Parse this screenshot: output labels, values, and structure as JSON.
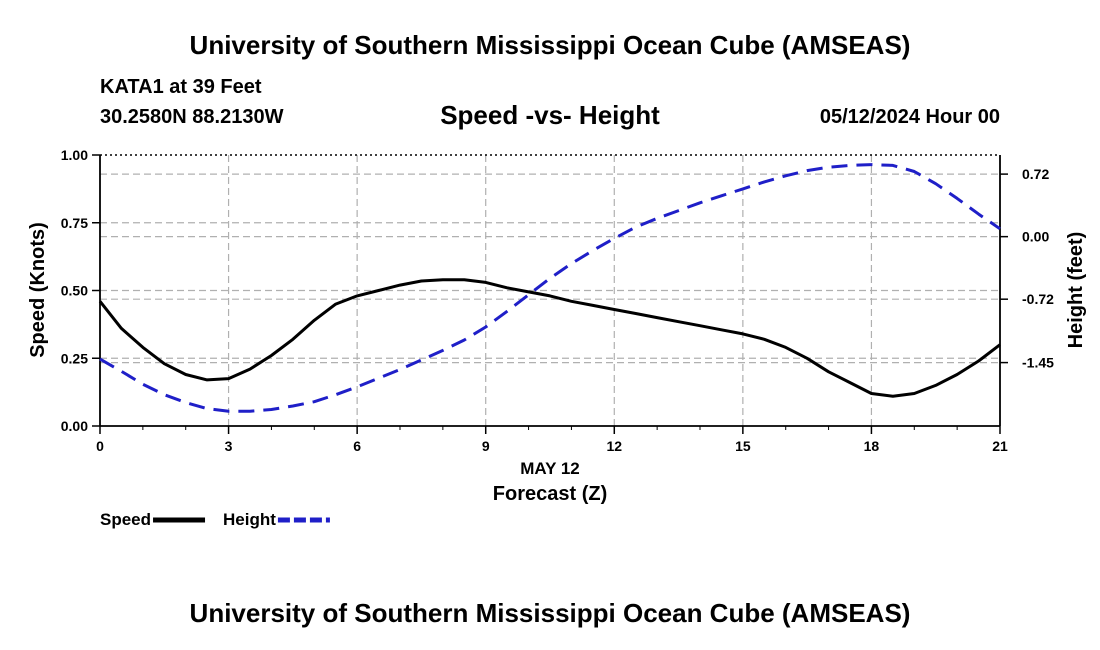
{
  "header": {
    "title": "University of Southern Mississippi Ocean Cube (AMSEAS)",
    "station": "KATA1 at 39 Feet",
    "coords": "30.2580N  88.2130W",
    "subtitle": "Speed -vs- Height",
    "datetime": "05/12/2024 Hour 00"
  },
  "footer": {
    "title": "University of Southern Mississippi Ocean Cube (AMSEAS)"
  },
  "chart_data": {
    "type": "line",
    "title": "Speed -vs- Height",
    "xlabel_top": "MAY 12",
    "xlabel": "Forecast (Z)",
    "ylabel": "Speed (Knots)",
    "y2label": "Height (feet)",
    "xlim": [
      0,
      21
    ],
    "ylim": [
      0,
      1
    ],
    "y2lim": [
      -2.18,
      0.94
    ],
    "x_ticks": [
      "0",
      "3",
      "6",
      "9",
      "12",
      "15",
      "18",
      "21"
    ],
    "y_ticks": [
      "0.00",
      "0.25",
      "0.50",
      "0.75",
      "1.00"
    ],
    "y2_ticks": [
      "0.72",
      "0.00",
      "-0.72",
      "-1.45"
    ],
    "grid": true,
    "legend_position": "bottom-left",
    "series": [
      {
        "name": "Speed",
        "axis": "left",
        "color": "#000000",
        "dash": "solid",
        "x": [
          0,
          0.5,
          1,
          1.5,
          2,
          2.5,
          3,
          3.5,
          4,
          4.5,
          5,
          5.5,
          6,
          6.5,
          7,
          7.5,
          8,
          8.5,
          9,
          9.5,
          10,
          10.5,
          11,
          11.5,
          12,
          12.5,
          13,
          13.5,
          14,
          14.5,
          15,
          15.5,
          16,
          16.5,
          17,
          17.5,
          18,
          18.5,
          19,
          19.5,
          20,
          20.5,
          21
        ],
        "values": [
          0.46,
          0.36,
          0.29,
          0.23,
          0.19,
          0.17,
          0.175,
          0.21,
          0.26,
          0.32,
          0.39,
          0.45,
          0.48,
          0.5,
          0.52,
          0.535,
          0.54,
          0.54,
          0.53,
          0.51,
          0.495,
          0.48,
          0.46,
          0.445,
          0.43,
          0.415,
          0.4,
          0.385,
          0.37,
          0.355,
          0.34,
          0.32,
          0.29,
          0.25,
          0.2,
          0.16,
          0.12,
          0.11,
          0.12,
          0.15,
          0.19,
          0.24,
          0.3
        ]
      },
      {
        "name": "Height",
        "axis": "right",
        "color": "#1f1fc8",
        "dash": "dashed",
        "x": [
          0,
          0.5,
          1,
          1.5,
          2,
          2.5,
          3,
          3.5,
          4,
          4.5,
          5,
          5.5,
          6,
          6.5,
          7,
          7.5,
          8,
          8.5,
          9,
          9.5,
          10,
          10.5,
          11,
          11.5,
          12,
          12.5,
          13,
          13.5,
          14,
          14.5,
          15,
          15.5,
          16,
          16.5,
          17,
          17.5,
          18,
          18.5,
          19,
          19.5,
          20,
          20.5,
          21
        ],
        "values": [
          -1.41,
          -1.55,
          -1.7,
          -1.82,
          -1.91,
          -1.98,
          -2.01,
          -2.01,
          -1.99,
          -1.95,
          -1.9,
          -1.82,
          -1.73,
          -1.63,
          -1.53,
          -1.42,
          -1.31,
          -1.19,
          -1.04,
          -0.86,
          -0.67,
          -0.48,
          -0.31,
          -0.16,
          -0.02,
          0.11,
          0.21,
          0.3,
          0.39,
          0.47,
          0.55,
          0.63,
          0.7,
          0.76,
          0.8,
          0.82,
          0.83,
          0.82,
          0.75,
          0.61,
          0.44,
          0.26,
          0.09
        ]
      }
    ]
  }
}
